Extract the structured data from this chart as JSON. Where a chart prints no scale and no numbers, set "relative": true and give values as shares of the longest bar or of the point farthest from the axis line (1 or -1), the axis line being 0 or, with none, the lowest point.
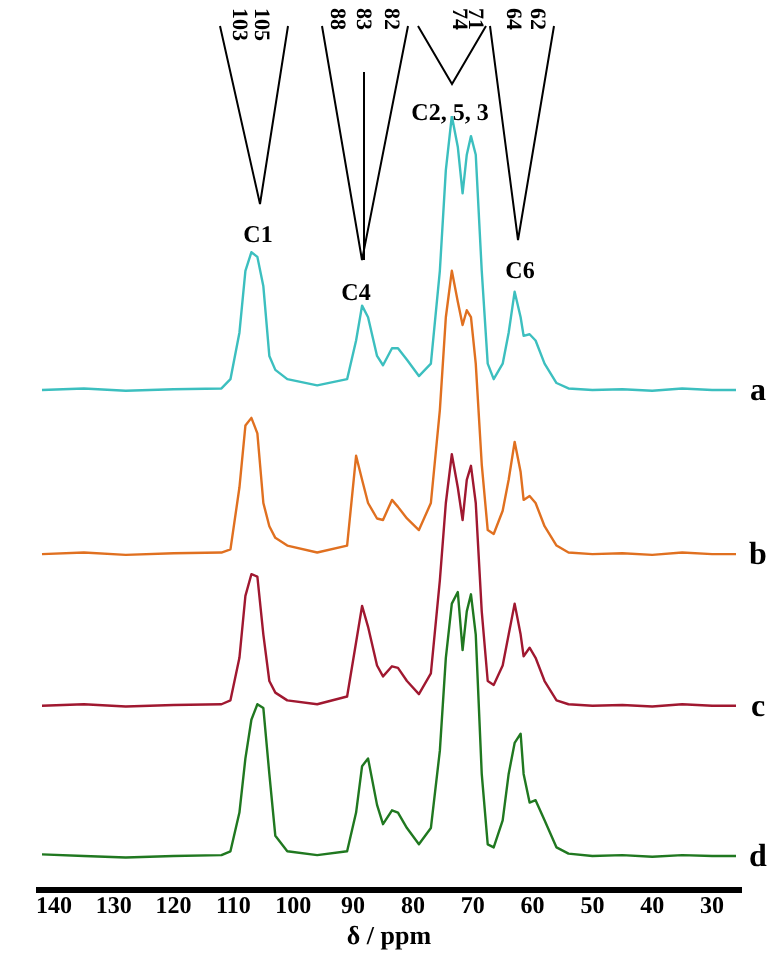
{
  "chart_data": {
    "type": "line",
    "relative": true,
    "xlabel": "δ / ppm",
    "xlim": [
      143,
      25
    ],
    "xticks": [
      140,
      130,
      120,
      110,
      100,
      90,
      80,
      70,
      60,
      50,
      40,
      30
    ],
    "x": [
      142,
      135,
      128,
      120,
      112,
      110.5,
      109,
      108,
      107,
      106,
      105,
      104,
      103,
      101,
      96,
      91,
      89.5,
      88.5,
      87.5,
      86,
      85,
      83.5,
      82.5,
      81,
      79,
      77,
      75.5,
      74.5,
      73.5,
      72.5,
      71.7,
      71,
      70.3,
      69.5,
      68.5,
      67.5,
      66.5,
      65,
      64,
      63,
      62,
      61.5,
      60.5,
      59.5,
      58,
      56,
      54,
      50,
      45,
      40,
      35,
      30,
      26
    ],
    "series": [
      {
        "name": "a",
        "color": "#3cbfbf",
        "values": [
          0.646,
          0.648,
          0.645,
          0.647,
          0.648,
          0.66,
          0.72,
          0.8,
          0.824,
          0.818,
          0.78,
          0.69,
          0.672,
          0.66,
          0.652,
          0.66,
          0.71,
          0.755,
          0.74,
          0.69,
          0.678,
          0.7,
          0.7,
          0.685,
          0.664,
          0.68,
          0.8,
          0.93,
          1,
          0.96,
          0.9,
          0.95,
          0.974,
          0.95,
          0.8,
          0.68,
          0.66,
          0.68,
          0.72,
          0.773,
          0.74,
          0.716,
          0.718,
          0.71,
          0.68,
          0.655,
          0.648,
          0.646,
          0.647,
          0.645,
          0.648,
          0.646,
          0.646
        ]
      },
      {
        "name": "b",
        "color": "#e07020",
        "values": [
          0.434,
          0.436,
          0.433,
          0.435,
          0.436,
          0.44,
          0.52,
          0.6,
          0.61,
          0.59,
          0.5,
          0.47,
          0.455,
          0.445,
          0.436,
          0.445,
          0.561,
          0.53,
          0.5,
          0.48,
          0.478,
          0.504,
          0.495,
          0.48,
          0.465,
          0.5,
          0.62,
          0.74,
          0.8,
          0.76,
          0.73,
          0.749,
          0.74,
          0.68,
          0.55,
          0.465,
          0.46,
          0.49,
          0.53,
          0.579,
          0.54,
          0.504,
          0.509,
          0.5,
          0.47,
          0.445,
          0.436,
          0.434,
          0.435,
          0.433,
          0.436,
          0.434,
          0.434
        ]
      },
      {
        "name": "c",
        "color": "#a01830",
        "values": [
          0.238,
          0.24,
          0.237,
          0.239,
          0.24,
          0.245,
          0.3,
          0.38,
          0.408,
          0.405,
          0.33,
          0.27,
          0.255,
          0.245,
          0.24,
          0.25,
          0.32,
          0.367,
          0.34,
          0.29,
          0.276,
          0.289,
          0.287,
          0.27,
          0.253,
          0.28,
          0.4,
          0.5,
          0.563,
          0.52,
          0.478,
          0.53,
          0.548,
          0.5,
          0.36,
          0.27,
          0.265,
          0.29,
          0.33,
          0.37,
          0.33,
          0.302,
          0.313,
          0.3,
          0.27,
          0.245,
          0.24,
          0.238,
          0.239,
          0.237,
          0.24,
          0.238,
          0.238
        ]
      },
      {
        "name": "d",
        "color": "#207820",
        "values": [
          0.046,
          0.044,
          0.042,
          0.044,
          0.045,
          0.05,
          0.1,
          0.17,
          0.22,
          0.24,
          0.235,
          0.15,
          0.07,
          0.05,
          0.045,
          0.05,
          0.1,
          0.16,
          0.17,
          0.11,
          0.085,
          0.103,
          0.1,
          0.08,
          0.059,
          0.08,
          0.18,
          0.3,
          0.37,
          0.385,
          0.31,
          0.36,
          0.382,
          0.33,
          0.15,
          0.059,
          0.055,
          0.09,
          0.15,
          0.19,
          0.202,
          0.15,
          0.113,
          0.116,
          0.09,
          0.055,
          0.047,
          0.044,
          0.045,
          0.043,
          0.045,
          0.044,
          0.044
        ]
      }
    ],
    "annotations": [
      "103",
      "105",
      "88",
      "83",
      "82",
      "74",
      "71",
      "64",
      "62",
      "C1",
      "C4",
      "C2, 5, 3",
      "C6"
    ]
  }
}
